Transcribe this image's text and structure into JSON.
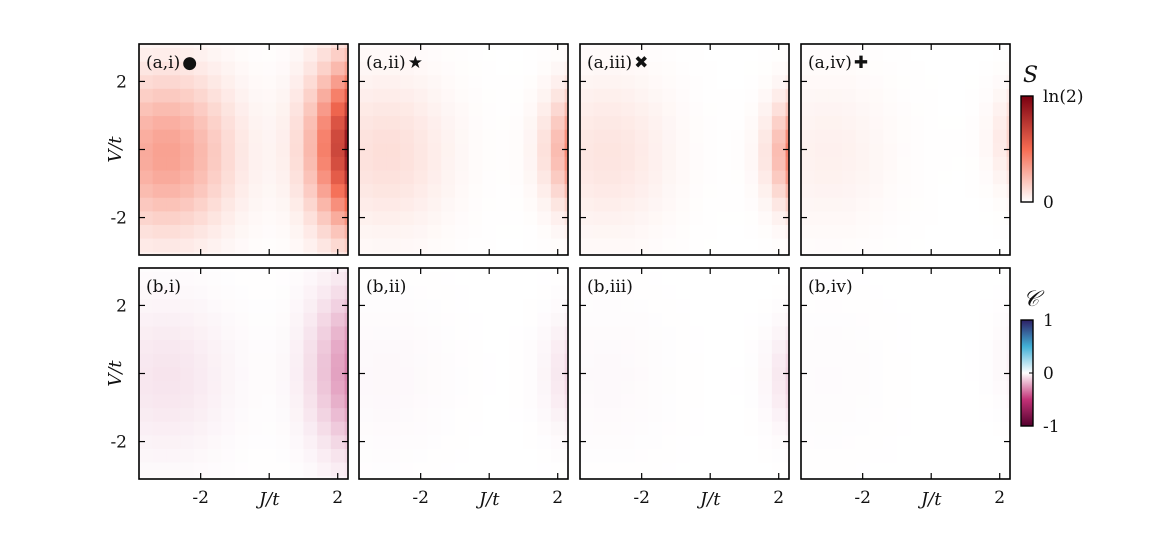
{
  "chart_data": {
    "type": "heatmap",
    "x": [
      -3.6,
      -3.2,
      -2.8,
      -2.4,
      -2.0,
      -1.6,
      -1.2,
      -0.8,
      -0.4,
      0.0,
      0.4,
      0.8,
      1.2,
      1.6,
      2.0,
      2.4,
      2.8,
      3.2
    ],
    "y": [
      -3.2,
      -2.8,
      -2.4,
      -2.0,
      -1.6,
      -1.2,
      -0.8,
      -0.4,
      0.0,
      0.4,
      0.8,
      1.2,
      1.6,
      2.0,
      2.4,
      2.8,
      3.2
    ],
    "xlabel": "J/t",
    "ylabel": "V/t",
    "xticks": [
      {
        "value": -2,
        "label": "-2"
      },
      {
        "value": 2,
        "label": "2"
      }
    ],
    "yticks": [
      {
        "value": -2,
        "label": "-2"
      },
      {
        "value": 2,
        "label": "2"
      }
    ],
    "xlim": [
      -3.8,
      2.3
    ],
    "ylim": [
      -3.1,
      3.1
    ],
    "rows": [
      {
        "colorbar": {
          "title": "S",
          "tick_labels": [
            "ln(2)",
            "0"
          ],
          "range": [
            0,
            0.693
          ],
          "colors": [
            "#ffffff",
            "#f56b52",
            "#7a0010"
          ]
        },
        "panels": [
          {
            "label": "(a,i)",
            "marker": "●",
            "amplitude": 1.0,
            "center_x": 2.9,
            "center_y": 0.1,
            "width_x": 1.0,
            "width_y": 1.6,
            "left_lobe": 0.32
          },
          {
            "label": "(a,ii)",
            "marker": "★",
            "amplitude": 0.58,
            "center_x": 3.1,
            "center_y": 0.0,
            "width_x": 0.8,
            "width_y": 1.15,
            "left_lobe": 0.11
          },
          {
            "label": "(a,iii)",
            "marker": "✖",
            "amplitude": 0.62,
            "center_x": 3.0,
            "center_y": -0.1,
            "width_x": 0.7,
            "width_y": 1.05,
            "left_lobe": 0.09
          },
          {
            "label": "(a,iv)",
            "marker": "✚",
            "amplitude": 0.3,
            "center_x": 3.3,
            "center_y": 0.3,
            "width_x": 0.75,
            "width_y": 1.0,
            "left_lobe": 0.05
          }
        ]
      },
      {
        "colorbar": {
          "title": "𝒞",
          "tick_labels": [
            "1",
            "0",
            "-1"
          ],
          "range": [
            -1,
            1
          ],
          "colors": [
            "#55002d",
            "#c23277",
            "#ffffff",
            "#42b0d6",
            "#2d1f66"
          ]
        },
        "panels": [
          {
            "label": "(b,i)",
            "marker": "",
            "amplitude": -0.34,
            "center_x": 2.9,
            "center_y": 0.1,
            "width_x": 1.0,
            "width_y": 1.6,
            "left_lobe": 0.22
          },
          {
            "label": "(b,ii)",
            "marker": "",
            "amplitude": -0.14,
            "center_x": 3.1,
            "center_y": 0.0,
            "width_x": 0.8,
            "width_y": 1.15,
            "left_lobe": 0.06
          },
          {
            "label": "(b,iii)",
            "marker": "",
            "amplitude": -0.15,
            "center_x": 3.0,
            "center_y": -0.1,
            "width_x": 0.7,
            "width_y": 1.05,
            "left_lobe": 0.05
          },
          {
            "label": "(b,iv)",
            "marker": "",
            "amplitude": -0.07,
            "center_x": 3.3,
            "center_y": 0.3,
            "width_x": 0.75,
            "width_y": 1.0,
            "left_lobe": 0.03
          }
        ]
      }
    ]
  }
}
